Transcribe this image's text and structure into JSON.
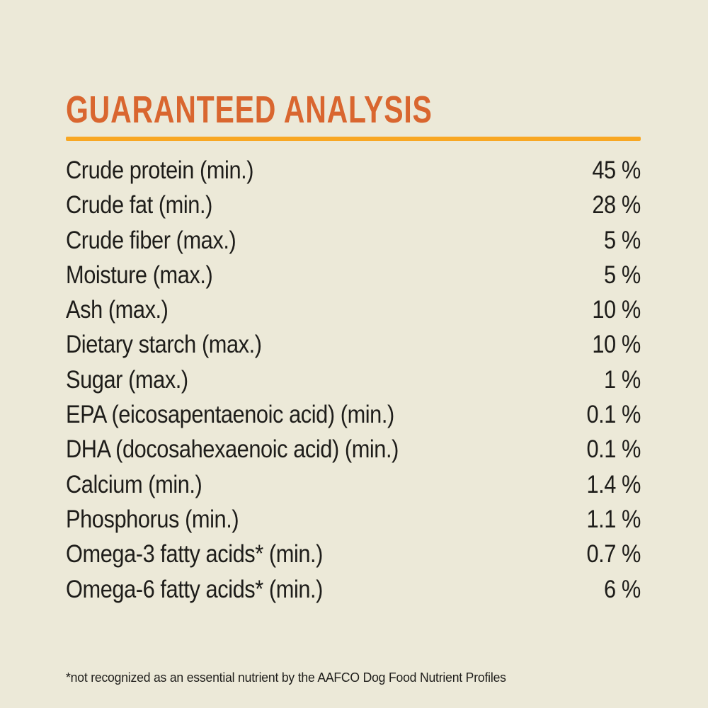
{
  "page": {
    "background_color": "#ECE9D8",
    "text_color": "#1E1D1A"
  },
  "header": {
    "title": "GUARANTEED ANALYSIS",
    "title_color": "#D9662F",
    "divider_color": "#F8A723"
  },
  "table": {
    "rows": [
      {
        "label": "Crude protein (min.)",
        "value": "45 %"
      },
      {
        "label": "Crude fat (min.)",
        "value": "28 %"
      },
      {
        "label": "Crude fiber (max.)",
        "value": "5 %"
      },
      {
        "label": "Moisture (max.)",
        "value": "5 %"
      },
      {
        "label": "Ash (max.)",
        "value": "10 %"
      },
      {
        "label": "Dietary starch (max.)",
        "value": "10 %"
      },
      {
        "label": "Sugar (max.)",
        "value": "1 %"
      },
      {
        "label": "EPA (eicosapentaenoic acid) (min.)",
        "value": "0.1 %"
      },
      {
        "label": "DHA (docosahexaenoic acid) (min.)",
        "value": "0.1 %"
      },
      {
        "label": "Calcium (min.)",
        "value": "1.4 %"
      },
      {
        "label": "Phosphorus (min.)",
        "value": "1.1 %"
      },
      {
        "label": "Omega-3 fatty acids* (min.)",
        "value": "0.7 %"
      },
      {
        "label": "Omega-6 fatty acids* (min.)",
        "value": "6 %"
      }
    ]
  },
  "footnote": {
    "text": "*not recognized as an essential nutrient by the AAFCO Dog Food Nutrient Profiles"
  }
}
